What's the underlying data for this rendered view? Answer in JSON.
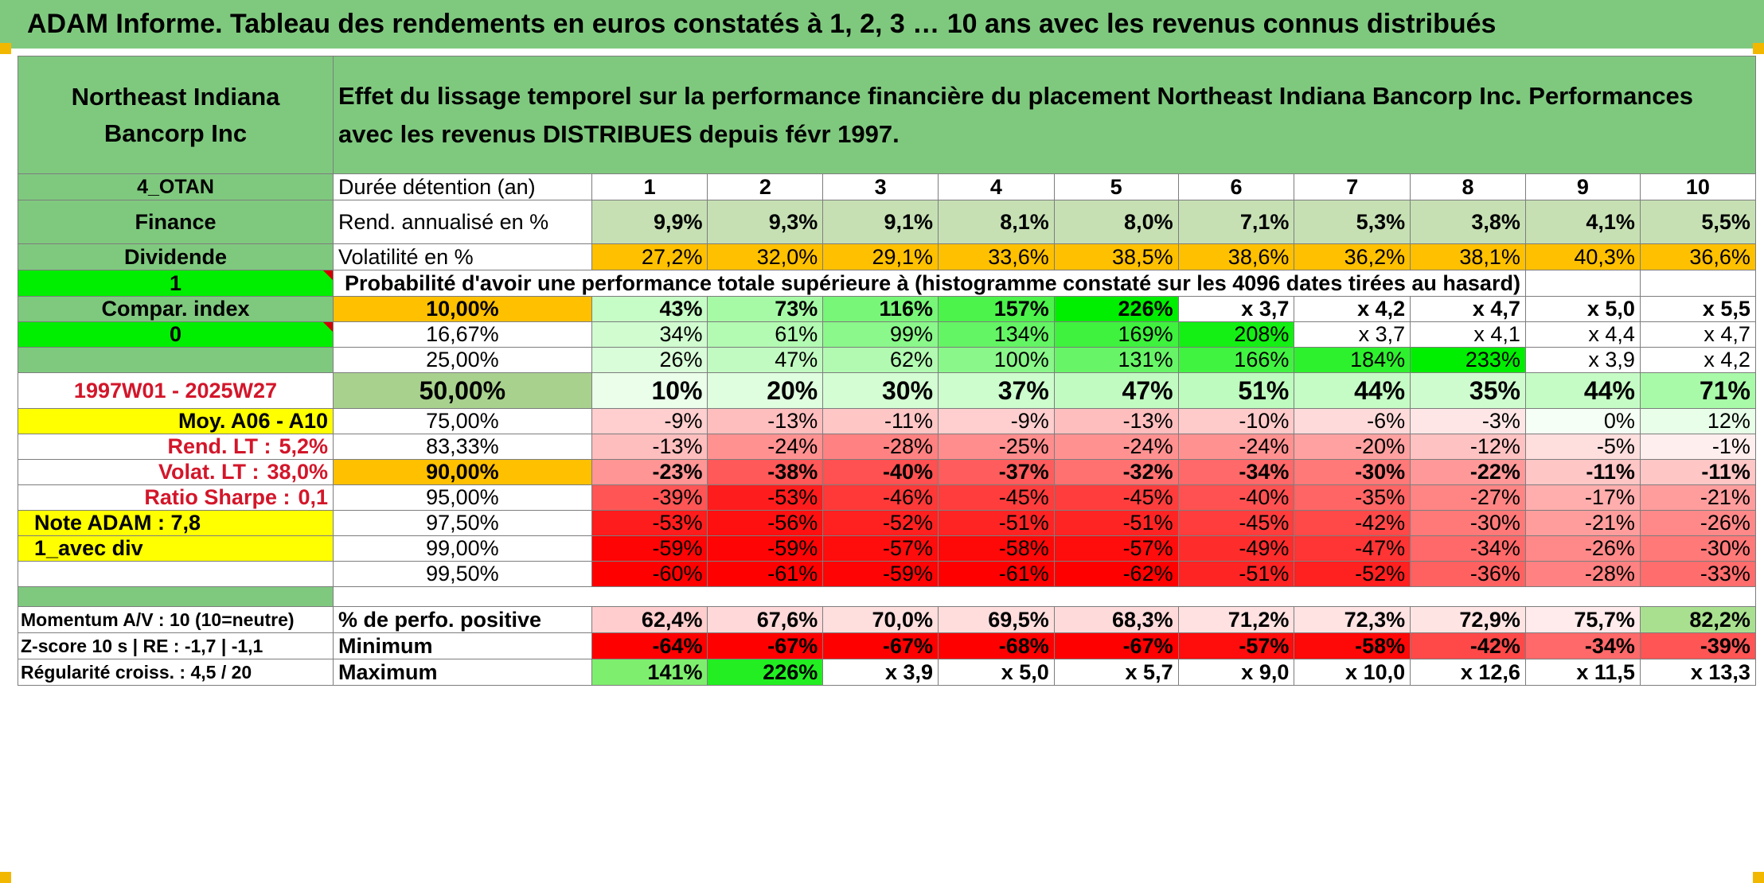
{
  "page_title": "ADAM Informe. Tableau des rendements en euros constatés à 1, 2, 3 … 10 ans avec les revenus connus distribués",
  "header": {
    "company": "Northeast Indiana Bancorp Inc",
    "description": "Effet du lissage temporel sur la performance financière du placement Northeast Indiana Bancorp Inc. Performances avec les revenus DISTRIBUES depuis févr 1997."
  },
  "left_panel": {
    "code": "4_OTAN",
    "sector": "Finance",
    "type": "Dividende",
    "selector_1": "1",
    "compar_index": "Compar. index",
    "selector_2": "0",
    "blank": "",
    "period": "1997W01 - 2025W27",
    "moy": "Moy. A06 - A10",
    "rend_lt_label": "Rend. LT :",
    "rend_lt_value": "5,2%",
    "volat_lt_label": "Volat. LT :",
    "volat_lt_value": "38,0%",
    "sharpe_label": "Ratio Sharpe :",
    "sharpe_value": "0,1",
    "note": "Note ADAM : 7,8",
    "avec_div": "1_avec div",
    "momentum": "Momentum A/V : 10 (10=neutre)",
    "zscore": "Z-score 10 s | RE : -1,7 | -1,1",
    "regularite": "Régularité croiss. : 4,5 / 20"
  },
  "table": {
    "duration_label": "Durée détention (an)",
    "years": [
      "1",
      "2",
      "3",
      "4",
      "5",
      "6",
      "7",
      "8",
      "9",
      "10"
    ],
    "rend_label": "Rend. annualisé en %",
    "rend": [
      "9,9%",
      "9,3%",
      "9,1%",
      "8,1%",
      "8,0%",
      "7,1%",
      "5,3%",
      "3,8%",
      "4,1%",
      "5,5%"
    ],
    "vol_label": "Volatilité en %",
    "vol": [
      "27,2%",
      "32,0%",
      "29,1%",
      "33,6%",
      "38,5%",
      "38,6%",
      "36,2%",
      "38,1%",
      "40,3%",
      "36,6%"
    ],
    "proba_label": "Probabilité d'avoir une performance totale supérieure à (histogramme constaté sur les 4096 dates tirées au hasard)",
    "percentile_rows": [
      {
        "p": "10,00%",
        "v": [
          "43%",
          "73%",
          "116%",
          "157%",
          "226%",
          "x 3,7",
          "x 4,2",
          "x 4,7",
          "x 5,0",
          "x 5,5"
        ]
      },
      {
        "p": "16,67%",
        "v": [
          "34%",
          "61%",
          "99%",
          "134%",
          "169%",
          "208%",
          "x 3,7",
          "x 4,1",
          "x 4,4",
          "x 4,7"
        ]
      },
      {
        "p": "25,00%",
        "v": [
          "26%",
          "47%",
          "62%",
          "100%",
          "131%",
          "166%",
          "184%",
          "233%",
          "x 3,9",
          "x 4,2"
        ]
      },
      {
        "p": "50,00%",
        "v": [
          "10%",
          "20%",
          "30%",
          "37%",
          "47%",
          "51%",
          "44%",
          "35%",
          "44%",
          "71%"
        ]
      },
      {
        "p": "75,00%",
        "v": [
          "-9%",
          "-13%",
          "-11%",
          "-9%",
          "-13%",
          "-10%",
          "-6%",
          "-3%",
          "0%",
          "12%"
        ]
      },
      {
        "p": "83,33%",
        "v": [
          "-13%",
          "-24%",
          "-28%",
          "-25%",
          "-24%",
          "-24%",
          "-20%",
          "-12%",
          "-5%",
          "-1%"
        ]
      },
      {
        "p": "90,00%",
        "v": [
          "-23%",
          "-38%",
          "-40%",
          "-37%",
          "-32%",
          "-34%",
          "-30%",
          "-22%",
          "-11%",
          "-11%"
        ]
      },
      {
        "p": "95,00%",
        "v": [
          "-39%",
          "-53%",
          "-46%",
          "-45%",
          "-45%",
          "-40%",
          "-35%",
          "-27%",
          "-17%",
          "-21%"
        ]
      },
      {
        "p": "97,50%",
        "v": [
          "-53%",
          "-56%",
          "-52%",
          "-51%",
          "-51%",
          "-45%",
          "-42%",
          "-30%",
          "-21%",
          "-26%"
        ]
      },
      {
        "p": "99,00%",
        "v": [
          "-59%",
          "-59%",
          "-57%",
          "-58%",
          "-57%",
          "-49%",
          "-47%",
          "-34%",
          "-26%",
          "-30%"
        ]
      },
      {
        "p": "99,50%",
        "v": [
          "-60%",
          "-61%",
          "-59%",
          "-61%",
          "-62%",
          "-51%",
          "-52%",
          "-36%",
          "-28%",
          "-33%"
        ]
      }
    ],
    "pos_label": "% de perfo. positive",
    "pos": [
      "62,4%",
      "67,6%",
      "70,0%",
      "69,5%",
      "68,3%",
      "71,2%",
      "72,3%",
      "72,9%",
      "75,7%",
      "82,2%"
    ],
    "min_label": "Minimum",
    "min": [
      "-64%",
      "-67%",
      "-67%",
      "-68%",
      "-67%",
      "-57%",
      "-58%",
      "-42%",
      "-34%",
      "-39%"
    ],
    "max_label": "Maximum",
    "max": [
      "141%",
      "226%",
      "x 3,9",
      "x 5,0",
      "x 5,7",
      "x 9,0",
      "x 10,0",
      "x 12,6",
      "x 11,5",
      "x 13,3"
    ]
  },
  "colors": {
    "title_green": "#7fc97f",
    "rend_green": "#c6e0b4",
    "orange": "#ffc000",
    "bright_green": "#00ee00",
    "yellow": "#ffff00",
    "accent_red": "#d3162a"
  }
}
